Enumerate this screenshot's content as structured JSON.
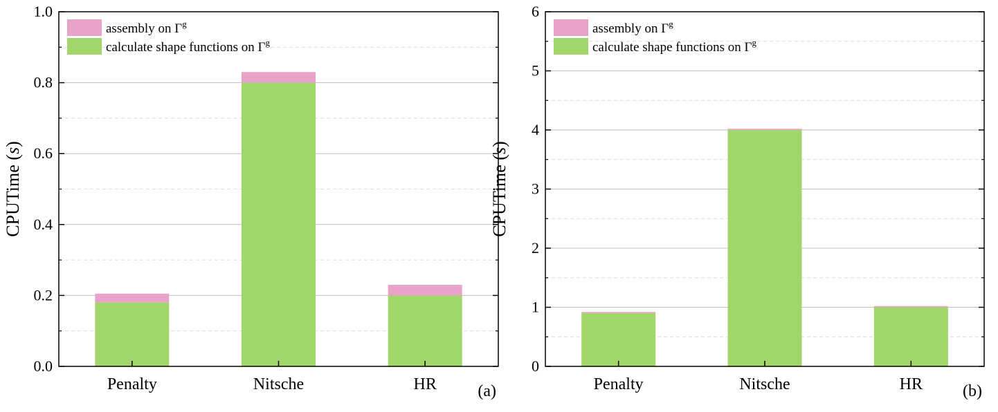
{
  "chart_data": [
    {
      "type": "bar",
      "stacked": true,
      "panel_label": "(a)",
      "categories": [
        "Penalty",
        "Nitsche",
        "HR"
      ],
      "ylabel_main": "CPUTime (",
      "ylabel_var": "s",
      "ylabel_close": ")",
      "ylim": [
        0,
        1.0
      ],
      "yticks": [
        0.0,
        0.2,
        0.4,
        0.6,
        0.8,
        1.0
      ],
      "ytick_labels": [
        "0.0",
        "0.2",
        "0.4",
        "0.6",
        "0.8",
        "1.0"
      ],
      "grid": true,
      "legend_position": "top-left",
      "series": [
        {
          "name_text": "calculate shape functions on Γ",
          "name_sup": "g",
          "color": "#a1d76a",
          "values": [
            0.18,
            0.8,
            0.2
          ]
        },
        {
          "name_text": "assembly on Γ",
          "name_sup": "g",
          "color": "#e9a3c9",
          "values": [
            0.025,
            0.03,
            0.03
          ]
        }
      ]
    },
    {
      "type": "bar",
      "stacked": true,
      "panel_label": "(b)",
      "categories": [
        "Penalty",
        "Nitsche",
        "HR"
      ],
      "ylabel_main": "CPUTime (",
      "ylabel_var": "s",
      "ylabel_close": ")",
      "ylim": [
        0,
        6
      ],
      "yticks": [
        0,
        1,
        2,
        3,
        4,
        5,
        6
      ],
      "ytick_labels": [
        "0",
        "1",
        "2",
        "3",
        "4",
        "5",
        "6"
      ],
      "grid": true,
      "legend_position": "top-left",
      "series": [
        {
          "name_text": "calculate shape functions on Γ",
          "name_sup": "g",
          "color": "#a1d76a",
          "values": [
            0.9,
            4.0,
            1.0
          ]
        },
        {
          "name_text": "assembly on Γ",
          "name_sup": "g",
          "color": "#e9a3c9",
          "values": [
            0.02,
            0.02,
            0.02
          ]
        }
      ]
    }
  ]
}
